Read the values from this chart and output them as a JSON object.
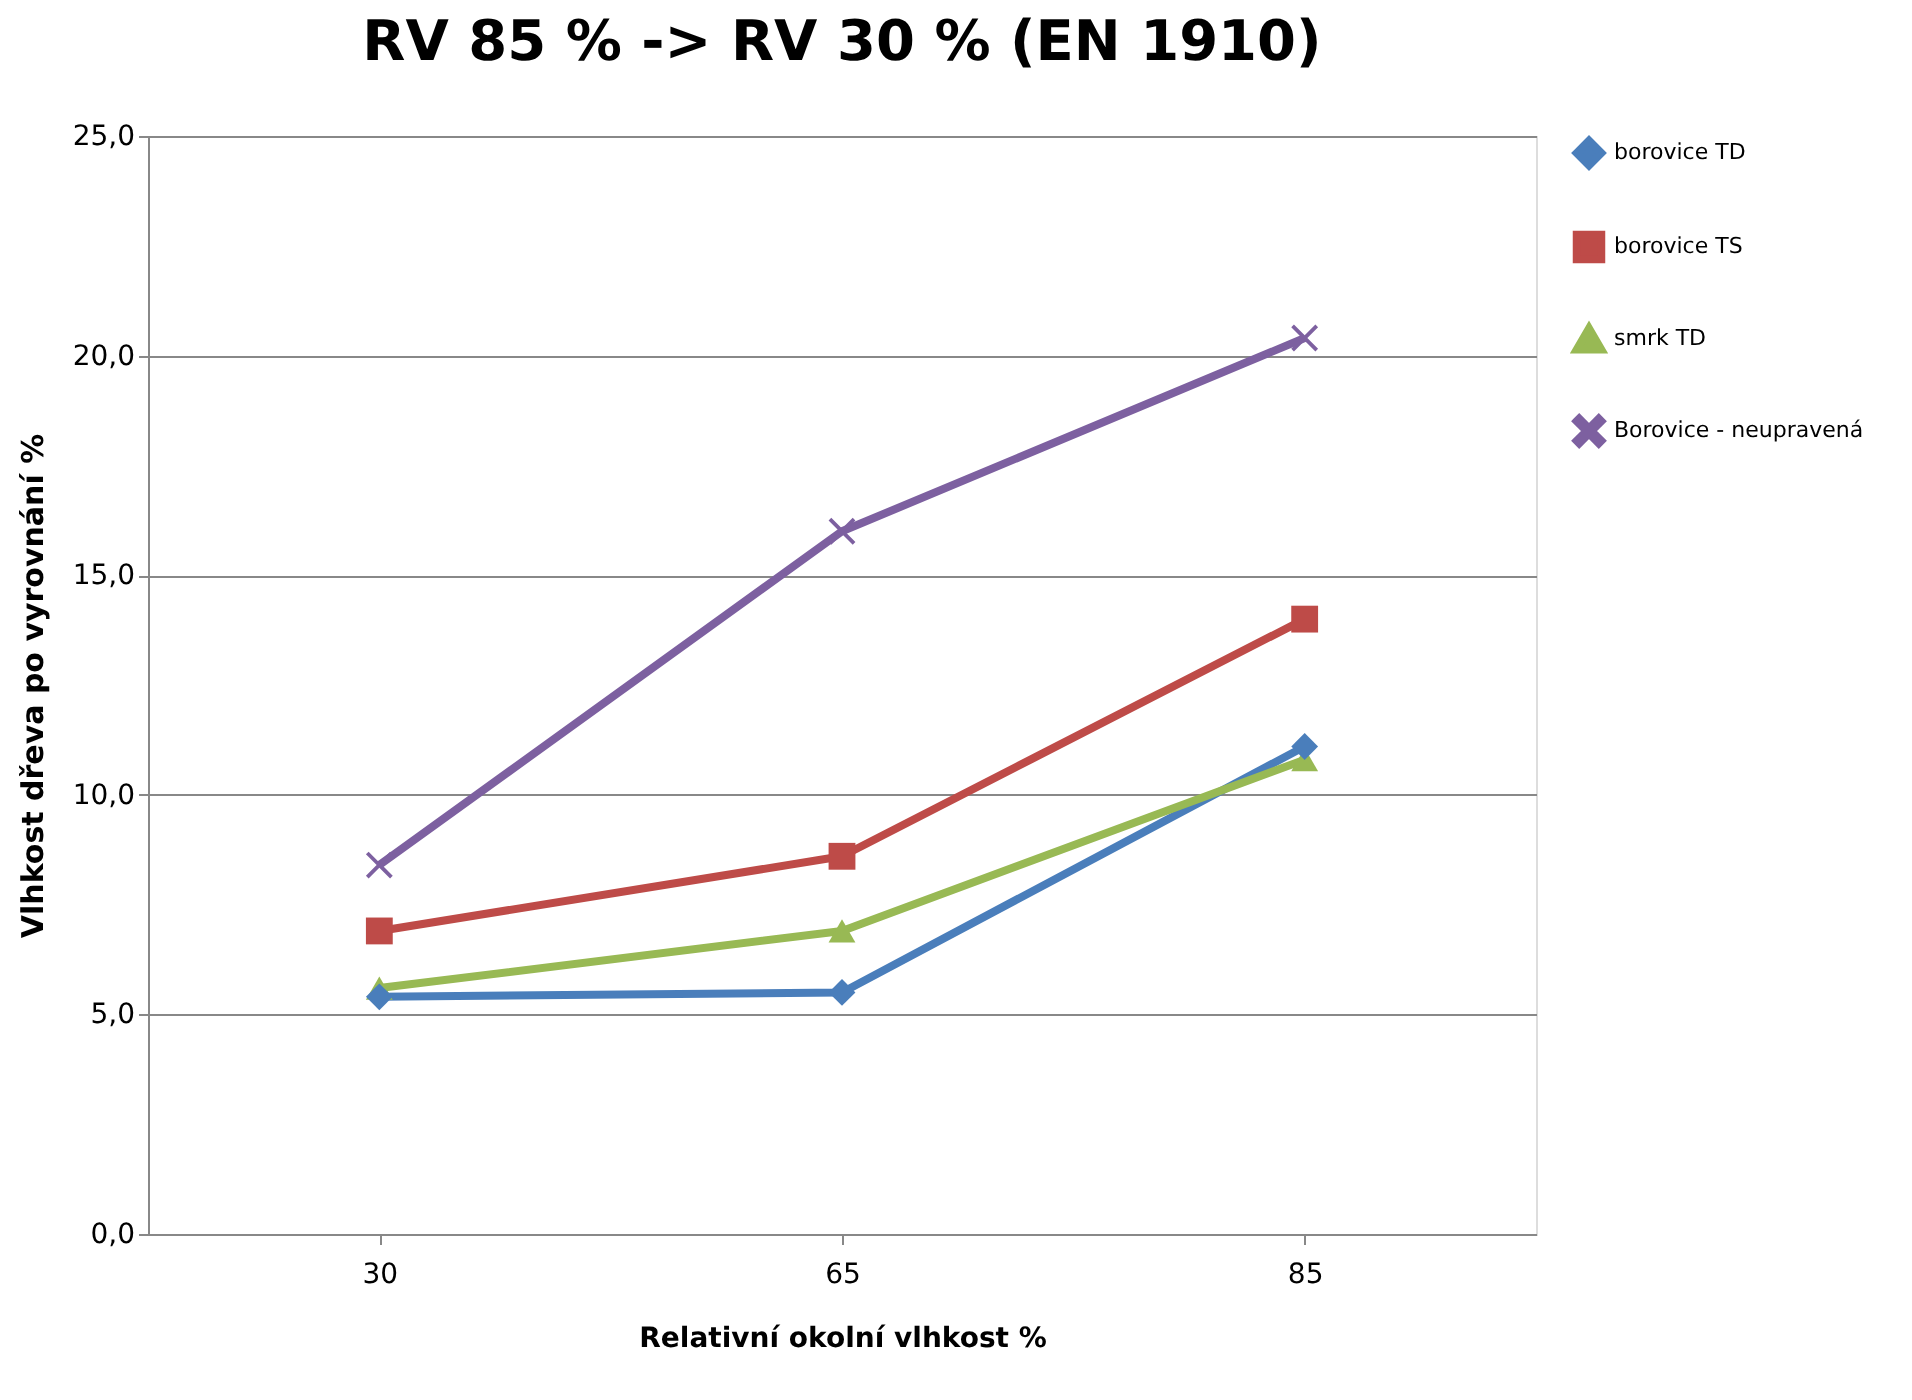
{
  "chart_data": {
    "type": "line",
    "title": "RV 85 % -> RV 30 % (EN 1910)",
    "xlabel": "Relativní okolní vlhkost %",
    "ylabel": "Vlhkost dřeva po vyrovnání %",
    "categories": [
      "30",
      "65",
      "85"
    ],
    "series": [
      {
        "name": "borovice TD",
        "color": "#4a7ebb",
        "marker": "diamond",
        "values": [
          5.4,
          5.5,
          11.1
        ]
      },
      {
        "name": "borovice TS",
        "color": "#be4b48",
        "marker": "square",
        "values": [
          6.9,
          8.6,
          14.0
        ]
      },
      {
        "name": "smrk TD",
        "color": "#98b954",
        "marker": "triangle",
        "values": [
          5.6,
          6.9,
          10.8
        ]
      },
      {
        "name": "Borovice - neupravená",
        "color": "#7d60a0",
        "marker": "cross",
        "values": [
          8.4,
          16.0,
          20.4
        ]
      }
    ],
    "ylim": [
      0,
      25
    ],
    "yticks": [
      {
        "value": 0,
        "label": "0,0"
      },
      {
        "value": 5,
        "label": "5,0"
      },
      {
        "value": 10,
        "label": "10,0"
      },
      {
        "value": 15,
        "label": "15,0"
      },
      {
        "value": 20,
        "label": "20,0"
      },
      {
        "value": 25,
        "label": "25,0"
      }
    ],
    "grid": "y",
    "legend": "right",
    "line_style": "solid"
  }
}
